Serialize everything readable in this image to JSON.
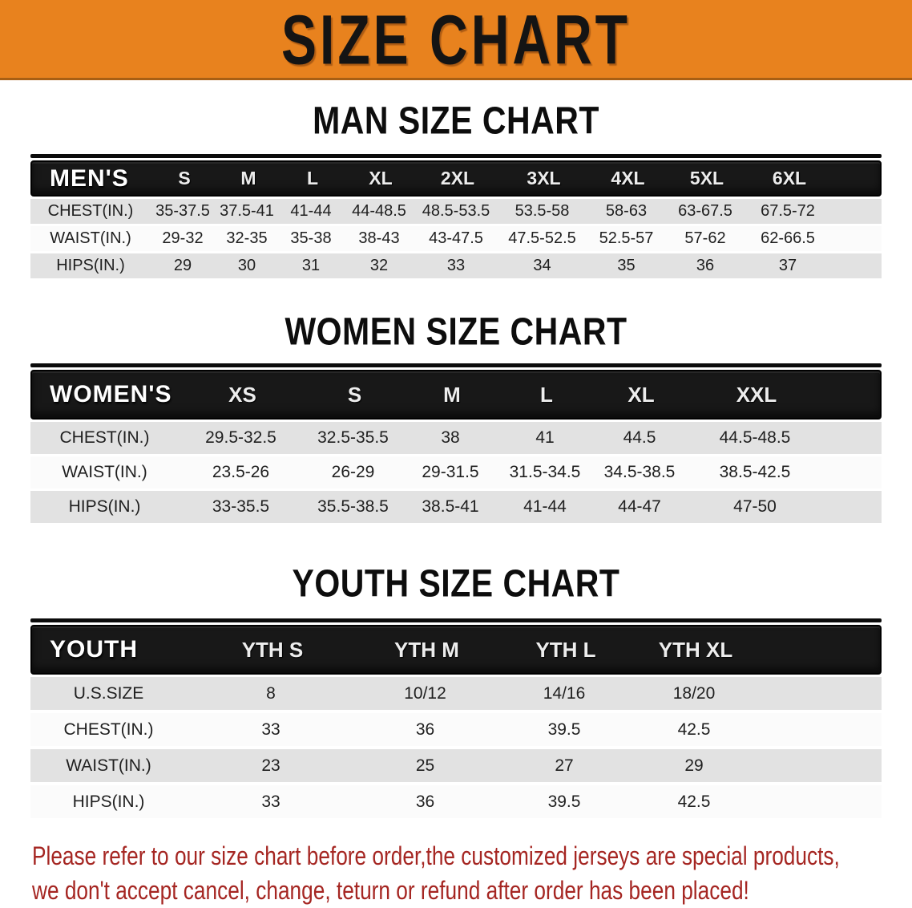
{
  "banner": {
    "title": "SIZE CHART"
  },
  "colors": {
    "banner_bg": "#E8821E",
    "banner_text": "#141414",
    "bar_bg": "#181818",
    "row_gray": "#E2E2E2",
    "row_white": "#FBFBFB",
    "cell_text": "#1F1F1F",
    "note_red": "#A52622"
  },
  "tables": [
    {
      "id": "men",
      "title": "MAN SIZE CHART",
      "corner": "MEN'S",
      "columns": [
        "S",
        "M",
        "L",
        "XL",
        "2XL",
        "3XL",
        "4XL",
        "5XL",
        "6XL"
      ],
      "rows": [
        {
          "label": "CHEST(IN.)",
          "values": [
            "35-37.5",
            "37.5-41",
            "41-44",
            "44-48.5",
            "48.5-53.5",
            "53.5-58",
            "58-63",
            "63-67.5",
            "67.5-72"
          ]
        },
        {
          "label": "WAIST(IN.)",
          "values": [
            "29-32",
            "32-35",
            "35-38",
            "38-43",
            "43-47.5",
            "47.5-52.5",
            "52.5-57",
            "57-62",
            "62-66.5"
          ]
        },
        {
          "label": "HIPS(IN.)",
          "values": [
            "29",
            "30",
            "31",
            "32",
            "33",
            "34",
            "35",
            "36",
            "37"
          ]
        }
      ]
    },
    {
      "id": "women",
      "title": "WOMEN SIZE CHART",
      "corner": "WOMEN'S",
      "columns": [
        "XS",
        "S",
        "M",
        "L",
        "XL",
        "XXL"
      ],
      "rows": [
        {
          "label": "CHEST(IN.)",
          "values": [
            "29.5-32.5",
            "32.5-35.5",
            "38",
            "41",
            "44.5",
            "44.5-48.5"
          ]
        },
        {
          "label": "WAIST(IN.)",
          "values": [
            "23.5-26",
            "26-29",
            "29-31.5",
            "31.5-34.5",
            "34.5-38.5",
            "38.5-42.5"
          ]
        },
        {
          "label": "HIPS(IN.)",
          "values": [
            "33-35.5",
            "35.5-38.5",
            "38.5-41",
            "41-44",
            "44-47",
            "47-50"
          ]
        }
      ]
    },
    {
      "id": "youth",
      "title": "YOUTH SIZE CHART",
      "corner": "YOUTH",
      "columns": [
        "YTH S",
        "YTH M",
        "YTH L",
        "YTH XL"
      ],
      "rows": [
        {
          "label": "U.S.SIZE",
          "values": [
            "8",
            "10/12",
            "14/16",
            "18/20"
          ]
        },
        {
          "label": "CHEST(IN.)",
          "values": [
            "33",
            "36",
            "39.5",
            "42.5"
          ]
        },
        {
          "label": "WAIST(IN.)",
          "values": [
            "23",
            "25",
            "27",
            "29"
          ]
        },
        {
          "label": "HIPS(IN.)",
          "values": [
            "33",
            "36",
            "39.5",
            "42.5"
          ]
        }
      ]
    }
  ],
  "footnote": {
    "line1": "Please refer to our size chart before order,the customized jerseys are special products,",
    "line2": "we don't accept cancel, change, teturn or refund after order has been placed!"
  }
}
